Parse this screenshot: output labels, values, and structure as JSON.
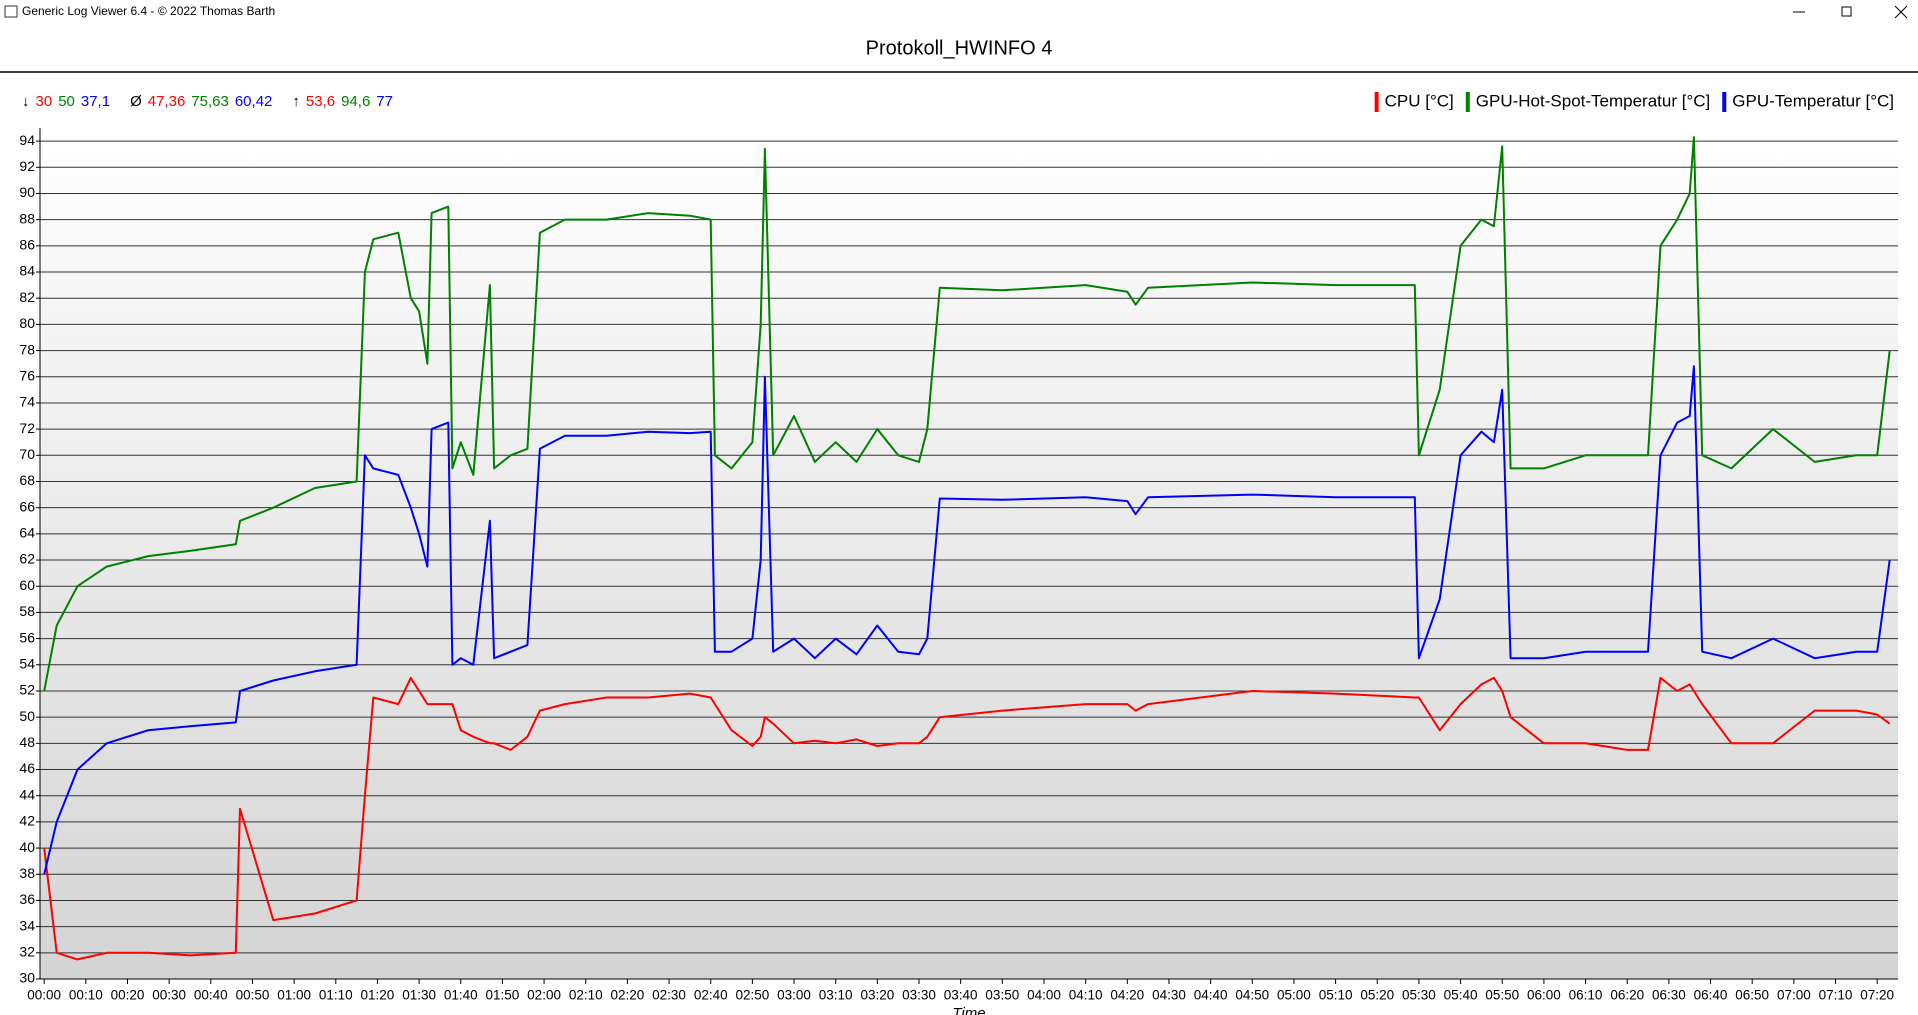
{
  "window": {
    "title": "Generic Log Viewer 6.4 - © 2022 Thomas Barth"
  },
  "stats": [
    {
      "symbol": "↓",
      "values": [
        "30",
        "50",
        "37,1"
      ]
    },
    {
      "symbol": "Ø",
      "values": [
        "47,36",
        "75,63",
        "60,42"
      ]
    },
    {
      "symbol": "↑",
      "values": [
        "53,6",
        "94,6",
        "77"
      ]
    }
  ],
  "chart_data": {
    "type": "line",
    "title": "Protokoll_HWINFO 4",
    "x_label": "Time",
    "legend": "top-right",
    "grid": true,
    "x": [
      0,
      3,
      8,
      15,
      25,
      35,
      46,
      47,
      55,
      65,
      75,
      77,
      79,
      85,
      88,
      90,
      92,
      93,
      97,
      98,
      100,
      103,
      107,
      108,
      112,
      116,
      119,
      125,
      135,
      145,
      155,
      160,
      161,
      165,
      170,
      172,
      173,
      175,
      180,
      185,
      190,
      195,
      200,
      205,
      210,
      212,
      215,
      230,
      250,
      260,
      262,
      265,
      290,
      310,
      329,
      330,
      335,
      340,
      345,
      348,
      350,
      352,
      360,
      370,
      380,
      385,
      388,
      392,
      395,
      396,
      398,
      405,
      415,
      425,
      435,
      440,
      443
    ],
    "series": [
      {
        "name": "CPU [°C]",
        "color": "#ff0000",
        "values": [
          40,
          32,
          31.5,
          32,
          32,
          31.8,
          32,
          43,
          34.5,
          35,
          36,
          44,
          51.5,
          51,
          53,
          52,
          51,
          51,
          51,
          51,
          49,
          48.5,
          48,
          48,
          47.5,
          48.5,
          50.5,
          51,
          51.5,
          51.5,
          51.8,
          51.5,
          51,
          49,
          47.8,
          48.5,
          50,
          49.5,
          48,
          48.2,
          48,
          48.3,
          47.8,
          48,
          48,
          48.5,
          50,
          50.5,
          51,
          51,
          50.5,
          51,
          52,
          51.8,
          51.5,
          51.5,
          49,
          51,
          52.5,
          53,
          52,
          50,
          48,
          48,
          47.5,
          47.5,
          53,
          52,
          52.5,
          52,
          51,
          48,
          48,
          50.5,
          50.5,
          50.2,
          49.5
        ]
      },
      {
        "name": "GPU-Hot-Spot-Temperatur [°C]",
        "color": "#008000",
        "values": [
          52,
          57,
          60,
          61.5,
          62.3,
          62.7,
          63.2,
          65,
          66,
          67.5,
          68,
          84,
          86.5,
          87,
          82,
          81,
          77,
          88.5,
          89,
          69,
          71,
          68.5,
          83,
          69,
          70,
          70.5,
          87,
          88,
          88,
          88.5,
          88.3,
          88,
          70,
          69,
          71,
          80,
          93.4,
          70,
          73,
          69.5,
          71,
          69.5,
          72,
          70,
          69.5,
          72,
          82.8,
          82.6,
          83,
          82.5,
          81.5,
          82.8,
          83.2,
          83,
          83,
          70,
          75,
          86,
          88,
          87.5,
          93.6,
          69,
          69,
          70,
          70,
          70,
          86,
          88,
          90,
          94.3,
          70,
          69,
          72,
          69.5,
          70,
          70,
          78
        ]
      },
      {
        "name": "GPU-Temperatur [°C]",
        "color": "#0000ff",
        "values": [
          38,
          42,
          46,
          48,
          49,
          49.3,
          49.6,
          52,
          52.8,
          53.5,
          54,
          70,
          69,
          68.5,
          66,
          64,
          61.5,
          72,
          72.5,
          54,
          54.5,
          54,
          65,
          54.5,
          55,
          55.5,
          70.5,
          71.5,
          71.5,
          71.8,
          71.7,
          71.8,
          55,
          55,
          56,
          62,
          76,
          55,
          56,
          54.5,
          56,
          54.8,
          57,
          55,
          54.8,
          56,
          66.7,
          66.6,
          66.8,
          66.5,
          65.5,
          66.8,
          67,
          66.8,
          66.8,
          54.5,
          59,
          70,
          71.8,
          71,
          75,
          54.5,
          54.5,
          55,
          55,
          55,
          70,
          72.5,
          73,
          76.8,
          55,
          54.5,
          56,
          54.5,
          55,
          55,
          62
        ]
      }
    ],
    "xlim": [
      -1,
      445
    ],
    "ylim": [
      30,
      95
    ],
    "yticks": [
      30,
      32,
      34,
      36,
      38,
      40,
      42,
      44,
      46,
      48,
      50,
      52,
      54,
      56,
      58,
      60,
      62,
      64,
      66,
      68,
      70,
      72,
      74,
      76,
      78,
      80,
      82,
      84,
      86,
      88,
      90,
      92,
      94
    ],
    "xticks": [
      {
        "value": 0,
        "label": "00:00"
      },
      {
        "value": 10,
        "label": "00:10"
      },
      {
        "value": 20,
        "label": "00:20"
      },
      {
        "value": 30,
        "label": "00:30"
      },
      {
        "value": 40,
        "label": "00:40"
      },
      {
        "value": 50,
        "label": "00:50"
      },
      {
        "value": 60,
        "label": "01:00"
      },
      {
        "value": 70,
        "label": "01:10"
      },
      {
        "value": 80,
        "label": "01:20"
      },
      {
        "value": 90,
        "label": "01:30"
      },
      {
        "value": 100,
        "label": "01:40"
      },
      {
        "value": 110,
        "label": "01:50"
      },
      {
        "value": 120,
        "label": "02:00"
      },
      {
        "value": 130,
        "label": "02:10"
      },
      {
        "value": 140,
        "label": "02:20"
      },
      {
        "value": 150,
        "label": "02:30"
      },
      {
        "value": 160,
        "label": "02:40"
      },
      {
        "value": 170,
        "label": "02:50"
      },
      {
        "value": 180,
        "label": "03:00"
      },
      {
        "value": 190,
        "label": "03:10"
      },
      {
        "value": 200,
        "label": "03:20"
      },
      {
        "value": 210,
        "label": "03:30"
      },
      {
        "value": 220,
        "label": "03:40"
      },
      {
        "value": 230,
        "label": "03:50"
      },
      {
        "value": 240,
        "label": "04:00"
      },
      {
        "value": 250,
        "label": "04:10"
      },
      {
        "value": 260,
        "label": "04:20"
      },
      {
        "value": 270,
        "label": "04:30"
      },
      {
        "value": 280,
        "label": "04:40"
      },
      {
        "value": 290,
        "label": "04:50"
      },
      {
        "value": 300,
        "label": "05:00"
      },
      {
        "value": 310,
        "label": "05:10"
      },
      {
        "value": 320,
        "label": "05:20"
      },
      {
        "value": 330,
        "label": "05:30"
      },
      {
        "value": 340,
        "label": "05:40"
      },
      {
        "value": 350,
        "label": "05:50"
      },
      {
        "value": 360,
        "label": "06:00"
      },
      {
        "value": 370,
        "label": "06:10"
      },
      {
        "value": 380,
        "label": "06:20"
      },
      {
        "value": 390,
        "label": "06:30"
      },
      {
        "value": 400,
        "label": "06:40"
      },
      {
        "value": 410,
        "label": "06:50"
      },
      {
        "value": 420,
        "label": "07:00"
      },
      {
        "value": 430,
        "label": "07:10"
      },
      {
        "value": 440,
        "label": "07:20"
      }
    ]
  }
}
